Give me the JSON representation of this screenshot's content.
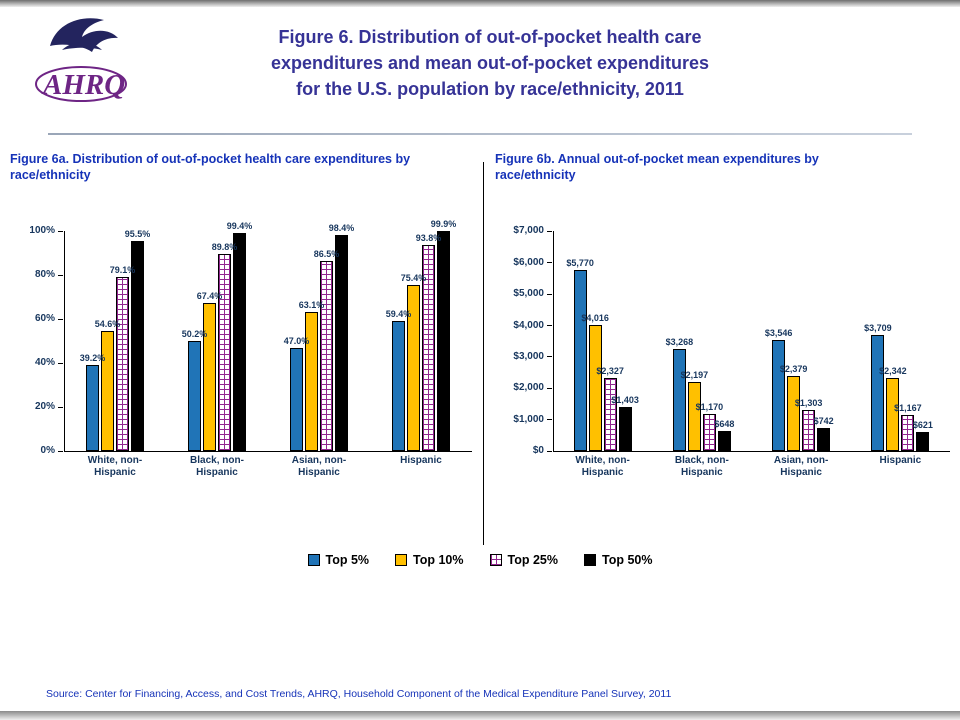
{
  "header": {
    "title_lines": [
      "Figure 6. Distribution of out-of-pocket health care",
      "expenditures and mean out-of-pocket expenditures",
      "for the U.S. population by race/ethnicity, 2011"
    ],
    "logo_text": "AHRQ"
  },
  "legend": {
    "items": [
      {
        "label": "Top 5%",
        "color": "#2074B7",
        "pattern": "solid"
      },
      {
        "label": "Top 10%",
        "color": "#FFC000",
        "pattern": "solid"
      },
      {
        "label": "Top 25%",
        "color": "#FFFFFF",
        "pattern": "brick",
        "pattern_color": "#92278F"
      },
      {
        "label": "Top 50%",
        "color": "#000000",
        "pattern": "solid"
      }
    ]
  },
  "source": "Source: Center for Financing, Access, and Cost Trends, AHRQ, Household Component of the Medical Expenditure Panel Survey, 2011",
  "chart_data": [
    {
      "type": "bar",
      "title": "Figure 6a. Distribution of out-of-pocket health care expenditures by race/ethnicity",
      "categories": [
        "White, non-Hispanic",
        "Black, non-Hispanic",
        "Asian, non-Hispanic",
        "Hispanic"
      ],
      "series": [
        {
          "name": "Top 5%",
          "values": [
            39.2,
            50.2,
            47.0,
            59.4
          ],
          "labels": [
            "39.2%",
            "50.2%",
            "47.0%",
            "59.4%"
          ]
        },
        {
          "name": "Top 10%",
          "values": [
            54.6,
            67.4,
            63.1,
            75.4
          ],
          "labels": [
            "54.6%",
            "67.4%",
            "63.1%",
            "75.4%"
          ]
        },
        {
          "name": "Top 25%",
          "values": [
            79.1,
            89.8,
            86.5,
            93.8
          ],
          "labels": [
            "79.1%",
            "89.8%",
            "86.5%",
            "93.8%"
          ]
        },
        {
          "name": "Top 50%",
          "values": [
            95.5,
            99.4,
            98.4,
            99.9
          ],
          "labels": [
            "95.5%",
            "99.4%",
            "98.4%",
            "99.9%"
          ]
        }
      ],
      "ylim": [
        0,
        100
      ],
      "ytick_labels": [
        "0%",
        "20%",
        "40%",
        "60%",
        "80%",
        "100%"
      ],
      "grid": false,
      "legend_position": "bottom-shared",
      "legend_entries": [
        "Top 5%",
        "Top 10%",
        "Top 25%",
        "Top 50%"
      ]
    },
    {
      "type": "bar",
      "title": "Figure 6b. Annual out-of-pocket mean expenditures by race/ethnicity",
      "categories": [
        "White, non-Hispanic",
        "Black, non-Hispanic",
        "Asian, non-Hispanic",
        "Hispanic"
      ],
      "series": [
        {
          "name": "Top 5%",
          "values": [
            5770,
            3268,
            3546,
            3709
          ],
          "labels": [
            "$5,770",
            "$3,268",
            "$3,546",
            "$3,709"
          ]
        },
        {
          "name": "Top 10%",
          "values": [
            4016,
            2197,
            2379,
            2342
          ],
          "labels": [
            "$4,016",
            "$2,197",
            "$2,379",
            "$2,342"
          ]
        },
        {
          "name": "Top 25%",
          "values": [
            2327,
            1170,
            1303,
            1167
          ],
          "labels": [
            "$2,327",
            "$1,170",
            "$1,303",
            "$1,167"
          ]
        },
        {
          "name": "Top 50%",
          "values": [
            1403,
            648,
            742,
            621
          ],
          "labels": [
            "$1,403",
            "$648",
            "$742",
            "$621"
          ]
        }
      ],
      "ylim": [
        0,
        7000
      ],
      "ytick_labels": [
        "$0",
        "$1,000",
        "$2,000",
        "$3,000",
        "$4,000",
        "$5,000",
        "$6,000",
        "$7,000"
      ],
      "grid": false,
      "legend_position": "bottom-shared",
      "legend_entries": [
        "Top 5%",
        "Top 10%",
        "Top 25%",
        "Top 50%"
      ]
    }
  ]
}
